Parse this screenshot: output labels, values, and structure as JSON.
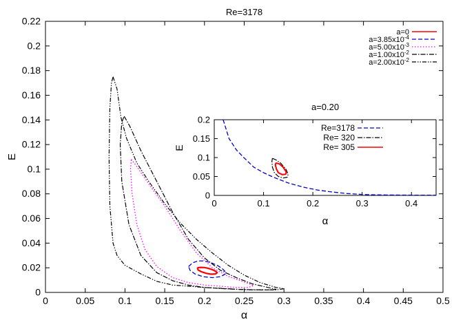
{
  "chart_data": [
    {
      "type": "line",
      "title": "Re=3178",
      "xlabel": "α",
      "ylabel": "E",
      "xlim": [
        0,
        0.5
      ],
      "ylim": [
        0,
        0.22
      ],
      "xticks": [
        0,
        0.05,
        0.1,
        0.15,
        0.2,
        0.25,
        0.3,
        0.35,
        0.4,
        0.45,
        0.5
      ],
      "yticks": [
        0,
        0.02,
        0.04,
        0.06,
        0.08,
        0.1,
        0.12,
        0.14,
        0.16,
        0.18,
        0.2,
        0.22
      ],
      "xtick_labels": [
        "0",
        "0.05",
        "0.1",
        "0.15",
        "0.2",
        "0.25",
        "0.3",
        "0.35",
        "0.4",
        "0.45",
        "0.5"
      ],
      "ytick_labels": [
        "0",
        "0.02",
        "0.04",
        "0.06",
        "0.08",
        "0.1",
        "0.12",
        "0.14",
        "0.16",
        "0.18",
        "0.2",
        "0.22"
      ],
      "grid": false,
      "legend_position": "top-right",
      "series": [
        {
          "name": "a=0",
          "color": "#ff0000",
          "style": "solid",
          "width": 2.2,
          "points": [
            [
              0.191,
              0.02
            ],
            [
              0.195,
              0.0203
            ],
            [
              0.2,
              0.0202
            ],
            [
              0.205,
              0.0195
            ],
            [
              0.21,
              0.0185
            ],
            [
              0.214,
              0.0172
            ],
            [
              0.216,
              0.016
            ],
            [
              0.214,
              0.015
            ],
            [
              0.208,
              0.0148
            ],
            [
              0.202,
              0.0155
            ],
            [
              0.196,
              0.0168
            ],
            [
              0.192,
              0.0182
            ],
            [
              0.191,
              0.02
            ]
          ]
        },
        {
          "name": "a=3.85x10^-4",
          "color": "#0000cc",
          "style": "dashed",
          "width": 1.3,
          "points": [
            [
              0.18,
              0.021
            ],
            [
              0.185,
              0.024
            ],
            [
              0.192,
              0.0256
            ],
            [
              0.2,
              0.0255
            ],
            [
              0.208,
              0.0242
            ],
            [
              0.216,
              0.022
            ],
            [
              0.222,
              0.0195
            ],
            [
              0.226,
              0.017
            ],
            [
              0.226,
              0.0148
            ],
            [
              0.22,
              0.0128
            ],
            [
              0.21,
              0.012
            ],
            [
              0.198,
              0.0128
            ],
            [
              0.188,
              0.015
            ],
            [
              0.182,
              0.0178
            ],
            [
              0.18,
              0.021
            ]
          ]
        },
        {
          "name": "a=5.00x10^-3",
          "color": "#ff00ff",
          "style": "dotted",
          "width": 1.3,
          "points": [
            [
              0.108,
              0.108
            ],
            [
              0.114,
              0.103
            ],
            [
              0.13,
              0.088
            ],
            [
              0.15,
              0.07
            ],
            [
              0.17,
              0.05
            ],
            [
              0.19,
              0.032
            ],
            [
              0.21,
              0.02
            ],
            [
              0.23,
              0.013
            ],
            [
              0.252,
              0.008
            ],
            [
              0.262,
              0.0055
            ],
            [
              0.255,
              0.004
            ],
            [
              0.24,
              0.004
            ],
            [
              0.22,
              0.005
            ],
            [
              0.2,
              0.006
            ],
            [
              0.18,
              0.008
            ],
            [
              0.16,
              0.012
            ],
            [
              0.14,
              0.021
            ],
            [
              0.125,
              0.035
            ],
            [
              0.115,
              0.055
            ],
            [
              0.109,
              0.08
            ],
            [
              0.107,
              0.1
            ],
            [
              0.108,
              0.108
            ]
          ]
        },
        {
          "name": "a=1.00x10^-2",
          "color": "#000000",
          "style": "dashdot",
          "width": 1.2,
          "points": [
            [
              0.099,
              0.143
            ],
            [
              0.106,
              0.135
            ],
            [
              0.12,
              0.115
            ],
            [
              0.14,
              0.09
            ],
            [
              0.16,
              0.065
            ],
            [
              0.18,
              0.043
            ],
            [
              0.2,
              0.028
            ],
            [
              0.22,
              0.018
            ],
            [
              0.24,
              0.012
            ],
            [
              0.26,
              0.007
            ],
            [
              0.28,
              0.004
            ],
            [
              0.29,
              0.0025
            ],
            [
              0.28,
              0.002
            ],
            [
              0.26,
              0.0022
            ],
            [
              0.24,
              0.0025
            ],
            [
              0.22,
              0.0032
            ],
            [
              0.2,
              0.004
            ],
            [
              0.18,
              0.006
            ],
            [
              0.16,
              0.0095
            ],
            [
              0.14,
              0.016
            ],
            [
              0.12,
              0.03
            ],
            [
              0.105,
              0.055
            ],
            [
              0.096,
              0.09
            ],
            [
              0.094,
              0.12
            ],
            [
              0.096,
              0.138
            ],
            [
              0.099,
              0.143
            ]
          ]
        },
        {
          "name": "a=2.00x10^-2",
          "color": "#000000",
          "style": "dashdotdot",
          "width": 1.2,
          "points": [
            [
              0.085,
              0.175
            ],
            [
              0.09,
              0.165
            ],
            [
              0.095,
              0.142
            ],
            [
              0.102,
              0.125
            ],
            [
              0.115,
              0.105
            ],
            [
              0.13,
              0.09
            ],
            [
              0.15,
              0.072
            ],
            [
              0.17,
              0.056
            ],
            [
              0.19,
              0.043
            ],
            [
              0.21,
              0.032
            ],
            [
              0.23,
              0.022
            ],
            [
              0.25,
              0.014
            ],
            [
              0.27,
              0.008
            ],
            [
              0.29,
              0.004
            ],
            [
              0.3,
              0.003
            ],
            [
              0.29,
              0.002
            ],
            [
              0.27,
              0.002
            ],
            [
              0.25,
              0.0022
            ],
            [
              0.23,
              0.003
            ],
            [
              0.2,
              0.004
            ],
            [
              0.18,
              0.005
            ],
            [
              0.16,
              0.006
            ],
            [
              0.14,
              0.009
            ],
            [
              0.12,
              0.015
            ],
            [
              0.1,
              0.022
            ],
            [
              0.09,
              0.03
            ],
            [
              0.085,
              0.04
            ],
            [
              0.081,
              0.07
            ],
            [
              0.08,
              0.11
            ],
            [
              0.081,
              0.15
            ],
            [
              0.083,
              0.17
            ],
            [
              0.085,
              0.175
            ]
          ]
        }
      ]
    },
    {
      "type": "line",
      "title": "a=0.20",
      "xlabel": "α",
      "ylabel": "E",
      "xlim": [
        0,
        0.45
      ],
      "ylim": [
        0,
        0.2
      ],
      "xticks": [
        0,
        0.1,
        0.2,
        0.3,
        0.4
      ],
      "yticks": [
        0,
        0.05,
        0.1,
        0.15,
        0.2
      ],
      "xtick_labels": [
        "0",
        "0.1",
        "0.2",
        "0.3",
        "0.4"
      ],
      "ytick_labels": [
        "0",
        "0.05",
        "0.1",
        "0.15",
        "0.2"
      ],
      "grid": false,
      "legend_position": "top-right",
      "series": [
        {
          "name": "Re=3178",
          "color": "#0000cc",
          "style": "dashed",
          "width": 1.3,
          "points": [
            [
              0.018,
              0.2
            ],
            [
              0.03,
              0.15
            ],
            [
              0.045,
              0.12
            ],
            [
              0.06,
              0.1
            ],
            [
              0.08,
              0.075
            ],
            [
              0.1,
              0.06
            ],
            [
              0.12,
              0.048
            ],
            [
              0.15,
              0.033
            ],
            [
              0.18,
              0.022
            ],
            [
              0.21,
              0.014
            ],
            [
              0.24,
              0.009
            ],
            [
              0.27,
              0.005
            ],
            [
              0.3,
              0.0025
            ],
            [
              0.33,
              0.0015
            ],
            [
              0.36,
              0.001
            ],
            [
              0.4,
              0.0008
            ],
            [
              0.45,
              0.0008
            ]
          ]
        },
        {
          "name": "Re=  320",
          "color": "#000000",
          "style": "dashdot",
          "width": 1.2,
          "points": [
            [
              0.118,
              0.098
            ],
            [
              0.125,
              0.094
            ],
            [
              0.135,
              0.085
            ],
            [
              0.145,
              0.07
            ],
            [
              0.15,
              0.056
            ],
            [
              0.148,
              0.048
            ],
            [
              0.14,
              0.046
            ],
            [
              0.13,
              0.05
            ],
            [
              0.122,
              0.06
            ],
            [
              0.118,
              0.075
            ],
            [
              0.117,
              0.09
            ],
            [
              0.118,
              0.098
            ]
          ]
        },
        {
          "name": "Re=  305",
          "color": "#ff0000",
          "style": "solid",
          "width": 2.0,
          "points": [
            [
              0.125,
              0.086
            ],
            [
              0.132,
              0.083
            ],
            [
              0.14,
              0.074
            ],
            [
              0.146,
              0.062
            ],
            [
              0.145,
              0.056
            ],
            [
              0.138,
              0.055
            ],
            [
              0.13,
              0.06
            ],
            [
              0.126,
              0.07
            ],
            [
              0.124,
              0.08
            ],
            [
              0.125,
              0.086
            ]
          ]
        }
      ]
    }
  ]
}
